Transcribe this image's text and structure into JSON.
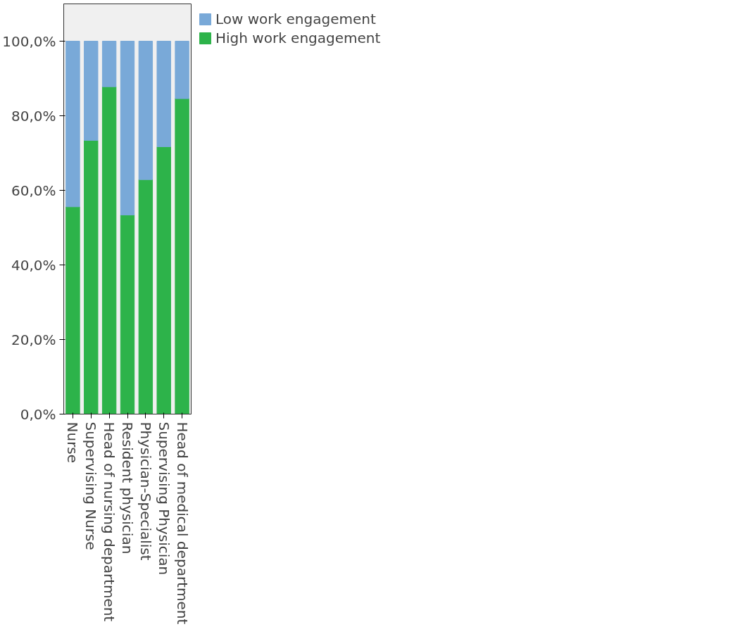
{
  "chart_data": {
    "type": "bar",
    "stacked": true,
    "categories": [
      "Nurse",
      "Supervising Nurse",
      "Head of nursing department",
      "Resident physician",
      "Physician-Specialist",
      "Supervising Physician",
      "Head of medical department"
    ],
    "series": [
      {
        "name": "High work engagement",
        "color": "#2db34a",
        "values": [
          55.6,
          73.4,
          87.8,
          53.4,
          62.9,
          71.7,
          84.6
        ]
      },
      {
        "name": "Low work engagement",
        "color": "#79a9d8",
        "values": [
          44.4,
          26.6,
          12.2,
          46.6,
          37.1,
          28.3,
          15.4
        ]
      }
    ],
    "ylim": [
      0,
      110
    ],
    "yticks": [
      {
        "value": 0,
        "label": "0,0%"
      },
      {
        "value": 20,
        "label": "20,0%"
      },
      {
        "value": 40,
        "label": "40,0%"
      },
      {
        "value": 60,
        "label": "60,0%"
      },
      {
        "value": 80,
        "label": "80,0%"
      },
      {
        "value": 100,
        "label": "100,0%"
      }
    ],
    "grid": false,
    "legend": "top right"
  }
}
